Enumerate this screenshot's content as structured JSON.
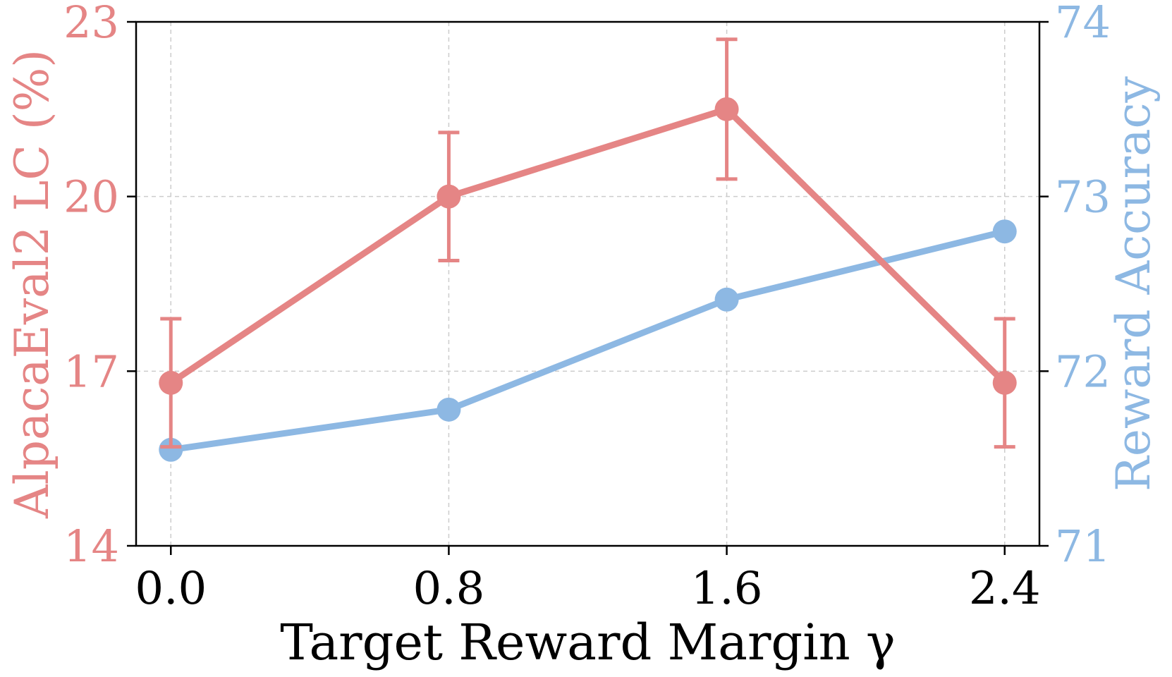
{
  "chart_data": {
    "type": "line",
    "xlabel": "Target Reward Margin γ",
    "x_ticks": [
      "0.0",
      "0.8",
      "1.6",
      "2.4"
    ],
    "x": [
      0.0,
      0.8,
      1.6,
      2.4
    ],
    "xlim": [
      -0.1,
      2.5
    ],
    "left_axis": {
      "label": "AlpacaEval2 LC (%)",
      "ticks": [
        "14",
        "17",
        "20",
        "23"
      ],
      "ylim": [
        14,
        23
      ],
      "color": "#E58585"
    },
    "right_axis": {
      "label": "Reward Accuracy",
      "ticks": [
        "71",
        "72",
        "73",
        "74"
      ],
      "ylim": [
        71,
        74
      ],
      "color": "#8DB8E3"
    },
    "grid": true,
    "series": [
      {
        "axis": "left",
        "color": "#E58585",
        "values": [
          16.8,
          20.0,
          21.5,
          16.8
        ],
        "error_low": [
          15.7,
          18.9,
          20.3,
          15.7
        ],
        "error_high": [
          17.9,
          21.1,
          22.7,
          17.9
        ]
      },
      {
        "axis": "right",
        "color": "#8DB8E3",
        "values": [
          71.55,
          71.78,
          72.41,
          72.8
        ]
      }
    ]
  }
}
